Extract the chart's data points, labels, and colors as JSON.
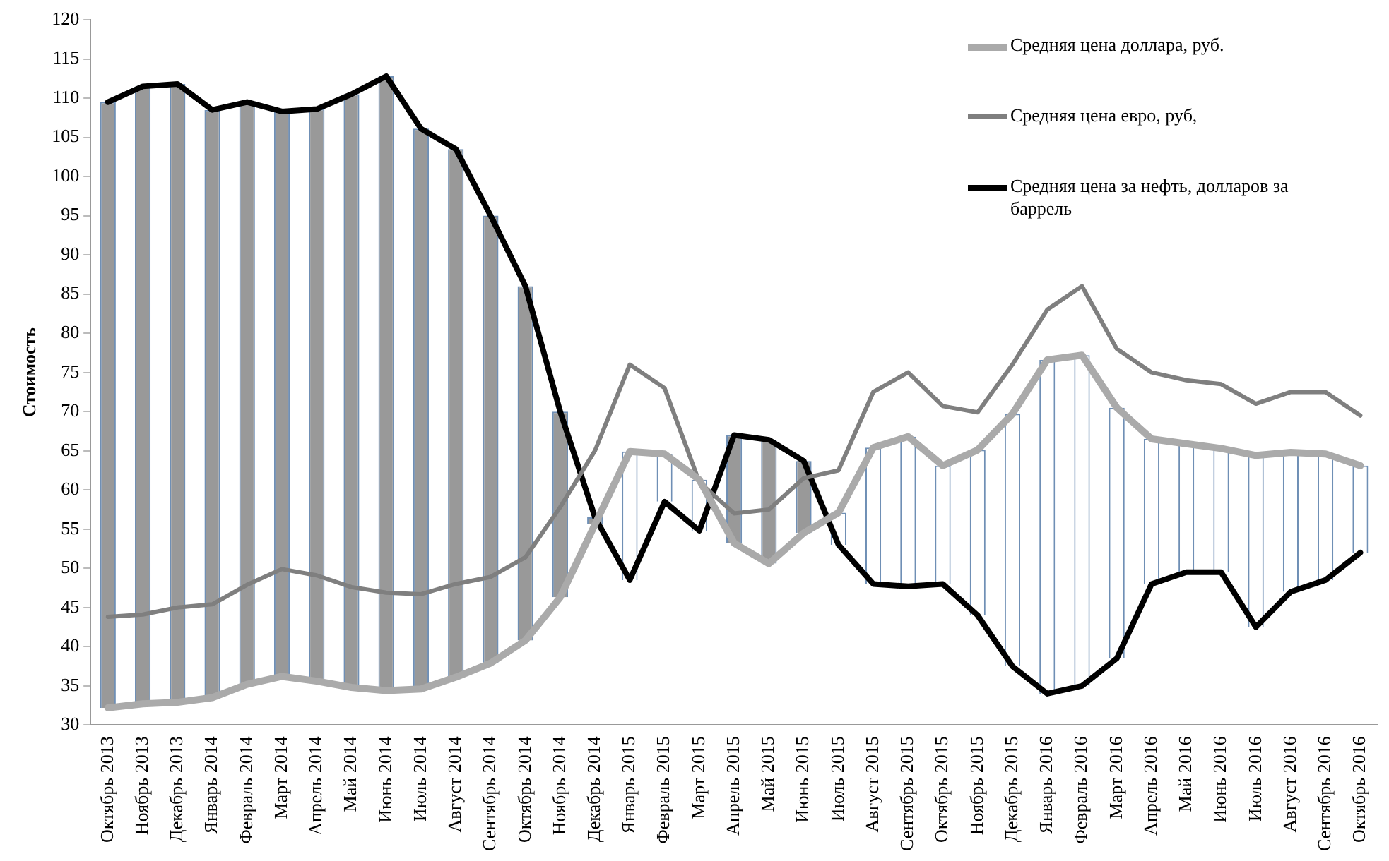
{
  "chart_data": {
    "type": "line",
    "ylabel": "Стоимость",
    "categories": [
      "Октябрь 2013",
      "Ноябрь 2013",
      "Декабрь 2013",
      "Январь 2014",
      "Февраль 2014",
      "Март 2014",
      "Апрель 2014",
      "Май 2014",
      "Июнь 2014",
      "Июль 2014",
      "Август 2014",
      "Сентябрь 2014",
      "Октябрь 2014",
      "Ноябрь 2014",
      "Декабрь 2014",
      "Январь 2015",
      "Февраль 2015",
      "Март 2015",
      "Апрель 2015",
      "Май 2015",
      "Июнь 2015",
      "Июль 2015",
      "Август 2015",
      "Сентябрь 2015",
      "Октябрь 2015",
      "Ноябрь 2015",
      "Декабрь 2015",
      "Январь 2016",
      "Февраль 2016",
      "Март 2016",
      "Апрель 2016",
      "Май 2016",
      "Июнь 2016",
      "Июль 2016",
      "Август 2016",
      "Сентябрь 2016",
      "Октябрь 2016"
    ],
    "ylim": [
      30,
      120
    ],
    "yticks": [
      30,
      35,
      40,
      45,
      50,
      55,
      60,
      65,
      70,
      75,
      80,
      85,
      90,
      95,
      100,
      105,
      110,
      115,
      120
    ],
    "grid": false,
    "legend": "top right",
    "marker": "none",
    "series": [
      {
        "type": "bar",
        "base": [
          32.2,
          32.7,
          32.9,
          33.5,
          35.2,
          36.2,
          35.6,
          34.8,
          34.4,
          34.6,
          36.1,
          37.9,
          40.8,
          46.3,
          55.6,
          64.9,
          64.6,
          61.3,
          53.2,
          50.6,
          54.5,
          57.1,
          65.4,
          66.8,
          63.1,
          65.1,
          69.7,
          76.6,
          77.2,
          70.5,
          66.5,
          65.9,
          65.3,
          64.4,
          64.8,
          64.6,
          63.1
        ],
        "values": [
          77.3,
          78.8,
          78.9,
          75.0,
          74.3,
          72.1,
          73.0,
          75.7,
          78.4,
          71.5,
          67.4,
          57.1,
          45.2,
          23.7,
          0.9,
          -16.4,
          -6.1,
          -6.5,
          13.8,
          15.8,
          9.2,
          -4.1,
          -17.4,
          -19.1,
          -15.1,
          -21.1,
          -32.2,
          -42.6,
          -42.2,
          -32.0,
          -18.5,
          -16.4,
          -15.8,
          -21.9,
          -17.8,
          -16.1,
          -11.1
        ],
        "colors": [
          "#999999",
          "#999999",
          "#999999",
          "#999999",
          "#999999",
          "#999999",
          "#999999",
          "#999999",
          "#999999",
          "#999999",
          "#999999",
          "#999999",
          "#999999",
          "#999999",
          "#999999",
          "#ffffff",
          "#ffffff",
          "#ffffff",
          "#999999",
          "#999999",
          "#999999",
          "#ffffff",
          "#ffffff",
          "#ffffff",
          "#ffffff",
          "#ffffff",
          "#ffffff",
          "#ffffff",
          "#ffffff",
          "#ffffff",
          "#ffffff",
          "#ffffff",
          "#ffffff",
          "#ffffff",
          "#ffffff",
          "#ffffff",
          "#ffffff"
        ]
      },
      {
        "name": "Средняя цена доллара, руб.",
        "color": "#aaaaaa",
        "values": [
          32.2,
          32.7,
          32.9,
          33.5,
          35.2,
          36.2,
          35.6,
          34.8,
          34.4,
          34.6,
          36.1,
          37.9,
          40.8,
          46.3,
          55.6,
          64.9,
          64.6,
          61.3,
          53.2,
          50.6,
          54.5,
          57.1,
          65.4,
          66.8,
          63.1,
          65.1,
          69.7,
          76.6,
          77.2,
          70.5,
          66.5,
          65.9,
          65.3,
          64.4,
          64.8,
          64.6,
          63.1
        ]
      },
      {
        "name": "Средняя цена евро, руб,",
        "color": "#7f7f7f",
        "values": [
          43.8,
          44.1,
          45.0,
          45.4,
          47.9,
          49.9,
          49.1,
          47.6,
          46.9,
          46.7,
          48.0,
          48.9,
          51.4,
          57.8,
          65.0,
          76.0,
          73.0,
          61.0,
          57.0,
          57.5,
          61.5,
          62.5,
          72.5,
          75.0,
          70.7,
          69.9,
          76.0,
          83.0,
          86.0,
          78.0,
          75.0,
          74.0,
          73.5,
          71.0,
          72.5,
          72.5,
          69.5
        ]
      },
      {
        "name": "Средняя цена за нефть, долларов за баррель",
        "color": "#000000",
        "values": [
          109.5,
          111.5,
          111.8,
          108.5,
          109.5,
          108.3,
          108.6,
          110.5,
          112.8,
          106.1,
          103.5,
          95.0,
          86.0,
          70.0,
          56.5,
          48.5,
          58.5,
          54.8,
          67.0,
          66.4,
          63.7,
          53.0,
          48.0,
          47.7,
          48.0,
          44.0,
          37.5,
          34.0,
          35.0,
          38.5,
          48.0,
          49.5,
          49.5,
          42.5,
          47.0,
          48.5,
          52.0
        ]
      }
    ]
  }
}
